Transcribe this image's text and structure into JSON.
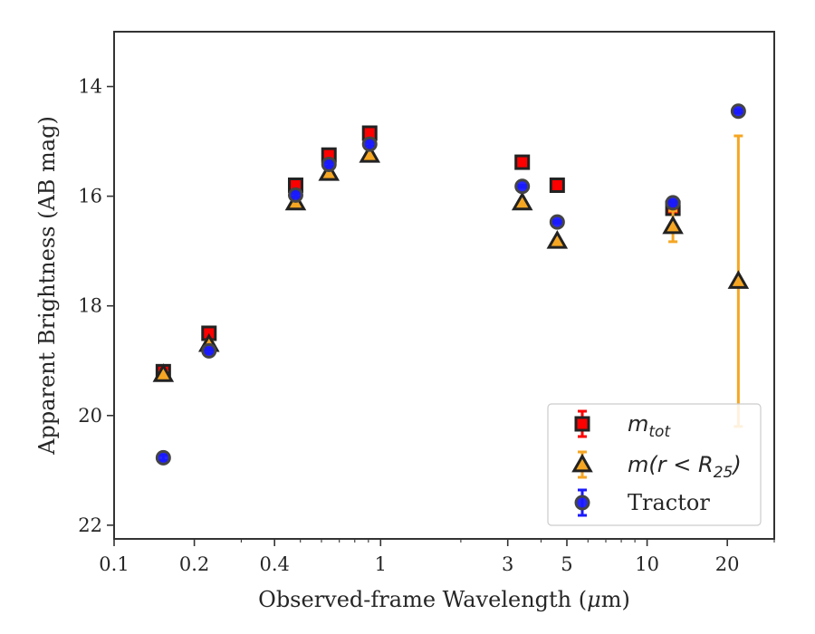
{
  "chart_data": {
    "type": "scatter",
    "xlabel_main": "Observed-frame Wavelength (",
    "xlabel_unit_mu": "μ",
    "xlabel_unit_rest": "m)",
    "ylabel": "Apparent Brightness (AB mag)",
    "x_scale": "log",
    "y_inverted": true,
    "xlim": [
      0.1,
      30
    ],
    "ylim": [
      22.25,
      13.0
    ],
    "x_ticks": [
      {
        "value": 0.1,
        "label": "0.1"
      },
      {
        "value": 0.2,
        "label": "0.2"
      },
      {
        "value": 0.4,
        "label": "0.4"
      },
      {
        "value": 1,
        "label": "1"
      },
      {
        "value": 3,
        "label": "3"
      },
      {
        "value": 5,
        "label": "5"
      },
      {
        "value": 10,
        "label": "10"
      },
      {
        "value": 20,
        "label": "20"
      }
    ],
    "y_ticks": [
      {
        "value": 14,
        "label": "14"
      },
      {
        "value": 16,
        "label": "16"
      },
      {
        "value": 18,
        "label": "18"
      },
      {
        "value": 20,
        "label": "20"
      },
      {
        "value": 22,
        "label": "22"
      }
    ],
    "legend_position": "lower-right",
    "series": [
      {
        "name_base": "m",
        "name_sub": "tot",
        "marker": "square",
        "color": "#ff0000",
        "edge": "#222222",
        "points": [
          {
            "x": 0.153,
            "y": 19.2,
            "err": 0.05
          },
          {
            "x": 0.227,
            "y": 18.5,
            "err": 0.05
          },
          {
            "x": 0.48,
            "y": 15.8,
            "err": 0.03
          },
          {
            "x": 0.64,
            "y": 15.25,
            "err": 0.03
          },
          {
            "x": 0.91,
            "y": 14.85,
            "err": 0.03
          },
          {
            "x": 3.4,
            "y": 15.38,
            "err": 0.02
          },
          {
            "x": 4.6,
            "y": 15.8,
            "err": 0.02
          },
          {
            "x": 12.5,
            "y": 16.22,
            "err": 0.1
          }
        ]
      },
      {
        "name_base": "m",
        "name_paren_open": "(",
        "name_r": "r",
        "name_lt": " < ",
        "name_R": "R",
        "name_R_sub": "25",
        "name_paren_close": ")",
        "marker": "triangle",
        "color": "#f5a623",
        "edge": "#222222",
        "points": [
          {
            "x": 0.153,
            "y": 19.25,
            "err": 0.05
          },
          {
            "x": 0.227,
            "y": 18.7,
            "err": 0.05
          },
          {
            "x": 0.48,
            "y": 16.12,
            "err": 0.03
          },
          {
            "x": 0.64,
            "y": 15.58,
            "err": 0.03
          },
          {
            "x": 0.91,
            "y": 15.25,
            "err": 0.03
          },
          {
            "x": 3.4,
            "y": 16.12,
            "err": 0.03
          },
          {
            "x": 4.6,
            "y": 16.82,
            "err": 0.03
          },
          {
            "x": 12.5,
            "y": 16.55,
            "err": 0.28
          },
          {
            "x": 22.0,
            "y": 17.55,
            "err": 2.65
          }
        ]
      },
      {
        "name": "Tractor",
        "marker": "circle",
        "color": "#1a1aff",
        "edge": "#444444",
        "points": [
          {
            "x": 0.153,
            "y": 20.77,
            "err": 0.05
          },
          {
            "x": 0.227,
            "y": 18.82,
            "err": 0.05
          },
          {
            "x": 0.48,
            "y": 15.98,
            "err": 0.03
          },
          {
            "x": 0.64,
            "y": 15.42,
            "err": 0.03
          },
          {
            "x": 0.91,
            "y": 15.05,
            "err": 0.03
          },
          {
            "x": 3.4,
            "y": 15.82,
            "err": 0.02
          },
          {
            "x": 4.6,
            "y": 16.47,
            "err": 0.02
          },
          {
            "x": 12.5,
            "y": 16.12,
            "err": 0.05
          },
          {
            "x": 22.0,
            "y": 14.45,
            "err": 0.03
          }
        ]
      }
    ]
  }
}
